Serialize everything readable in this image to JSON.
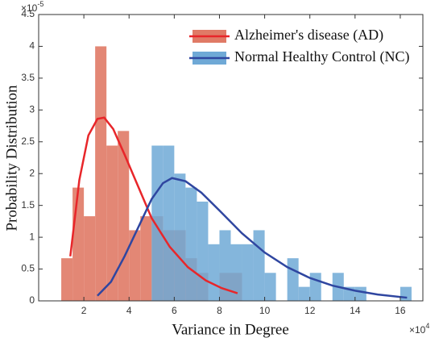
{
  "chart_data": {
    "type": "histogram",
    "xlabel": "Variance in Degree",
    "ylabel": "Probability Distribution",
    "x_multiplier": {
      "base": "×10",
      "exponent": "4"
    },
    "y_multiplier": {
      "base": "×10",
      "exponent": "-5"
    },
    "xlim": [
      0,
      17
    ],
    "xticks": [
      2,
      4,
      6,
      8,
      10,
      12,
      14,
      16
    ],
    "ylim": [
      0,
      4.5
    ],
    "yticks": [
      0,
      0.5,
      1,
      1.5,
      2,
      2.5,
      3,
      3.5,
      4,
      4.5
    ],
    "legend": "upper right",
    "series": [
      {
        "name": "Alzheimer's disease (AD)",
        "color": "#e07a66",
        "line_color": "#e8262a",
        "bins": [
          1,
          1.5,
          2,
          2.5,
          3,
          3.5,
          4,
          4.5,
          5,
          5.5,
          6,
          6.5,
          7,
          7.5,
          8,
          8.5,
          9
        ],
        "counts": [
          0.67,
          1.78,
          1.33,
          4.0,
          2.44,
          2.67,
          1.11,
          1.33,
          1.33,
          1.11,
          1.11,
          0.67,
          0.44,
          0,
          0.44,
          0.44
        ],
        "curve": {
          "x": [
            1.4,
            1.8,
            2.2,
            2.6,
            2.9,
            3.3,
            3.8,
            4.4,
            5.0,
            5.8,
            6.6,
            7.4,
            8.1,
            8.8
          ],
          "y": [
            0.7,
            1.9,
            2.6,
            2.86,
            2.88,
            2.7,
            2.3,
            1.8,
            1.3,
            0.85,
            0.53,
            0.32,
            0.2,
            0.12
          ]
        }
      },
      {
        "name": "Normal Healthy Control (NC)",
        "color": "#6fa9d6",
        "line_color": "#2f46a0",
        "bins": [
          5,
          5.5,
          6,
          6.5,
          7,
          7.5,
          8,
          8.5,
          9,
          9.5,
          10,
          10.5,
          11,
          11.5,
          12,
          12.5,
          13,
          13.5,
          14,
          14.5,
          15,
          15.5,
          16,
          16.5
        ],
        "counts": [
          2.44,
          2.44,
          2.0,
          1.78,
          1.56,
          0.89,
          1.11,
          0.89,
          0.89,
          1.11,
          0.44,
          0,
          0.67,
          0.22,
          0.44,
          0,
          0.44,
          0.22,
          0.22,
          0,
          0,
          0,
          0.22
        ],
        "curve": {
          "x": [
            2.6,
            3.2,
            3.8,
            4.4,
            5.0,
            5.5,
            5.9,
            6.5,
            7.2,
            8,
            9,
            10,
            11,
            12,
            13,
            14,
            15,
            16.3
          ],
          "y": [
            0.08,
            0.3,
            0.7,
            1.15,
            1.6,
            1.85,
            1.93,
            1.88,
            1.7,
            1.42,
            1.06,
            0.76,
            0.53,
            0.36,
            0.24,
            0.16,
            0.1,
            0.05
          ]
        }
      }
    ]
  }
}
